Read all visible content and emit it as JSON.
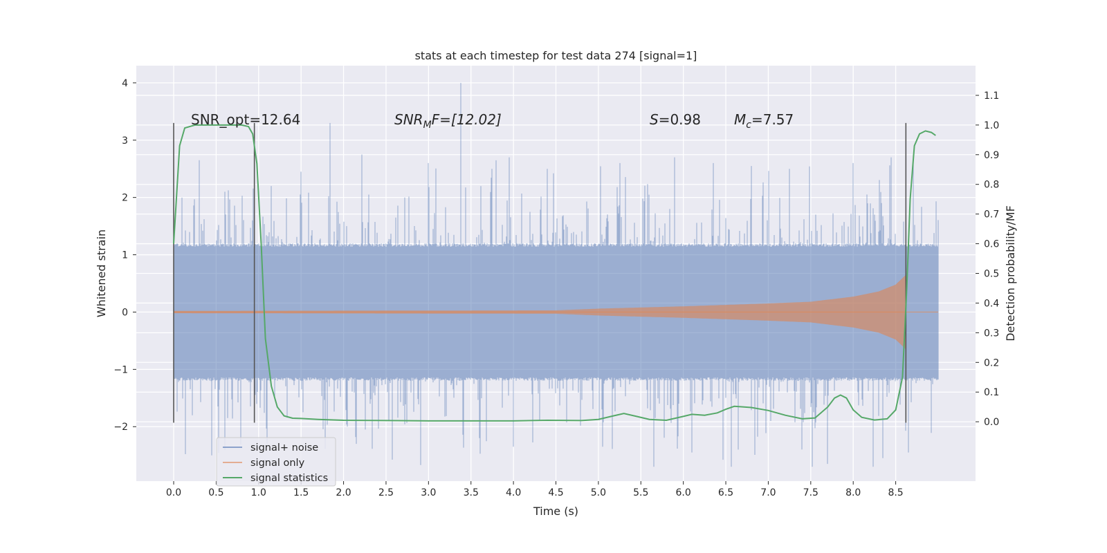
{
  "chart_data": {
    "type": "line",
    "title": "stats at each timestep for test data 274 [signal=1]",
    "xlabel": "Time (s)",
    "ylabel": "Whitened strain",
    "ylabel_right": "Detection probability/MF",
    "xlim": [
      -0.44,
      9.44
    ],
    "ylim": [
      -2.95,
      4.3
    ],
    "ylim_right": [
      -0.2,
      1.2
    ],
    "x_ticks": [
      "0.0",
      "0.5",
      "1.0",
      "1.5",
      "2.0",
      "2.5",
      "3.0",
      "3.5",
      "4.0",
      "4.5",
      "5.0",
      "5.5",
      "6.0",
      "6.5",
      "7.0",
      "7.5",
      "8.0",
      "8.5"
    ],
    "y_ticks": [
      "4",
      "3",
      "2",
      "1",
      "0",
      "−1",
      "−2"
    ],
    "y_ticks_right": [
      "1.1",
      "1.0",
      "0.9",
      "0.8",
      "0.7",
      "0.6",
      "0.5",
      "0.4",
      "0.3",
      "0.2",
      "0.1",
      "0.0"
    ],
    "grid": true,
    "legend_position": "lower-left",
    "colors": {
      "background": "#eaeaf2",
      "noise": "#4c72b0",
      "signal": "#dd8452",
      "stats": "#55a868",
      "vline": "#555555"
    },
    "annotations": [
      {
        "text": "SNR_opt=12.64"
      },
      {
        "text": "SNRMF=[12.02]",
        "parts": [
          "SNR",
          "M",
          "F=[12.02]"
        ]
      },
      {
        "text": "S=0.98",
        "parts": [
          "S",
          "=0.98"
        ]
      },
      {
        "text": "Mc=7.57",
        "parts": [
          "M",
          "c",
          "=7.57"
        ]
      }
    ],
    "vertical_lines": [
      0.0,
      0.95,
      8.62
    ],
    "series": [
      {
        "name": "signal+ noise",
        "x_range": [
          0.0,
          9.0
        ],
        "band": [
          -1.2,
          1.2
        ],
        "peaks": [
          {
            "x": 0.1,
            "y": 2.0
          },
          {
            "x": 0.3,
            "y": 2.65
          },
          {
            "x": 0.6,
            "y": 2.1
          },
          {
            "x": 1.15,
            "y": 2.2
          },
          {
            "x": 1.5,
            "y": 2.45
          },
          {
            "x": 1.84,
            "y": 3.3
          },
          {
            "x": 2.3,
            "y": 2.05
          },
          {
            "x": 3.0,
            "y": 2.6
          },
          {
            "x": 3.38,
            "y": 4.0
          },
          {
            "x": 3.75,
            "y": 2.5
          },
          {
            "x": 4.4,
            "y": 2.5
          },
          {
            "x": 5.25,
            "y": 2.6
          },
          {
            "x": 5.9,
            "y": 2.7
          },
          {
            "x": 6.35,
            "y": 2.6
          },
          {
            "x": 6.8,
            "y": 2.55
          },
          {
            "x": 7.25,
            "y": 2.5
          },
          {
            "x": 8.0,
            "y": 2.6
          },
          {
            "x": 8.45,
            "y": 2.7
          }
        ],
        "troughs": [
          {
            "x": 0.45,
            "y": -2.5
          },
          {
            "x": 1.1,
            "y": -2.3
          },
          {
            "x": 2.15,
            "y": -2.3
          },
          {
            "x": 3.6,
            "y": -2.2
          },
          {
            "x": 4.0,
            "y": -2.35
          },
          {
            "x": 5.05,
            "y": -2.35
          },
          {
            "x": 6.1,
            "y": -2.45
          },
          {
            "x": 6.65,
            "y": -2.4
          },
          {
            "x": 7.7,
            "y": -2.65
          },
          {
            "x": 8.35,
            "y": -2.55
          },
          {
            "x": 8.65,
            "y": -2.45
          }
        ]
      },
      {
        "name": "signal only",
        "x_range": [
          0.0,
          9.0
        ],
        "envelope": [
          [
            0.0,
            0.02
          ],
          [
            4.5,
            0.03
          ],
          [
            5.0,
            0.06
          ],
          [
            6.0,
            0.1
          ],
          [
            7.0,
            0.15
          ],
          [
            7.5,
            0.18
          ],
          [
            8.0,
            0.27
          ],
          [
            8.3,
            0.36
          ],
          [
            8.5,
            0.48
          ],
          [
            8.62,
            0.65
          ]
        ]
      },
      {
        "name": "signal statistics",
        "x": [
          0.0,
          0.07,
          0.13,
          0.25,
          0.4,
          0.6,
          0.8,
          0.88,
          0.93,
          0.98,
          1.03,
          1.08,
          1.15,
          1.22,
          1.3,
          1.4,
          1.5,
          1.7,
          2.0,
          2.5,
          3.0,
          3.5,
          4.0,
          4.4,
          4.8,
          5.0,
          5.15,
          5.3,
          5.45,
          5.6,
          5.8,
          6.0,
          6.1,
          6.25,
          6.4,
          6.5,
          6.6,
          6.8,
          7.0,
          7.2,
          7.4,
          7.55,
          7.7,
          7.78,
          7.85,
          7.92,
          8.0,
          8.1,
          8.25,
          8.4,
          8.5,
          8.58,
          8.63,
          8.67,
          8.72,
          8.78,
          8.85,
          8.92,
          8.97
        ],
        "y": [
          0.6,
          0.93,
          0.99,
          1.0,
          1.0,
          1.0,
          1.0,
          0.995,
          0.97,
          0.87,
          0.6,
          0.28,
          0.12,
          0.05,
          0.02,
          0.012,
          0.011,
          0.008,
          0.005,
          0.004,
          0.003,
          0.003,
          0.003,
          0.005,
          0.004,
          0.008,
          0.018,
          0.028,
          0.018,
          0.008,
          0.005,
          0.018,
          0.025,
          0.022,
          0.03,
          0.042,
          0.052,
          0.048,
          0.038,
          0.022,
          0.01,
          0.013,
          0.05,
          0.08,
          0.09,
          0.08,
          0.04,
          0.015,
          0.006,
          0.01,
          0.04,
          0.15,
          0.45,
          0.75,
          0.93,
          0.97,
          0.98,
          0.975,
          0.965
        ]
      }
    ]
  }
}
